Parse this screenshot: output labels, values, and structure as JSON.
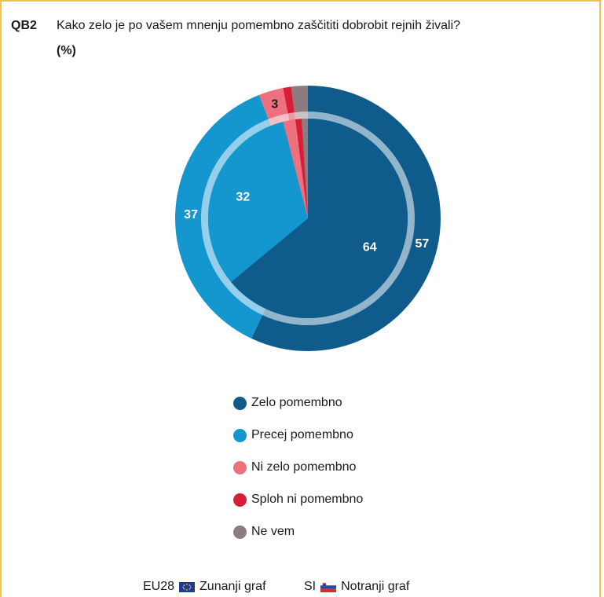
{
  "header": {
    "code": "QB2",
    "question": "Kako zelo je po vašem mnenju pomembno zaščititi dobrobit rejnih živali?",
    "unit": "(%)"
  },
  "chart_data": [
    {
      "type": "pie",
      "ring": "outer",
      "title": "",
      "series": "EU28",
      "slices": [
        {
          "label": "Zelo pomembno",
          "value": 57,
          "label_text": "57",
          "color": "#0e5b8c"
        },
        {
          "label": "Precej pomembno",
          "value": 37,
          "label_text": "37",
          "color": "#1496cf"
        },
        {
          "label": "Ni zelo pomembno",
          "value": 3,
          "label_text": "3",
          "color": "#ee6f7e"
        },
        {
          "label": "Sploh ni pomembno",
          "value": 1,
          "label_text": "",
          "color": "#d81e37"
        },
        {
          "label": "Ne vem",
          "value": 2,
          "label_text": "",
          "color": "#8c7b80"
        }
      ]
    },
    {
      "type": "pie",
      "ring": "inner",
      "title": "",
      "series": "SI",
      "slices": [
        {
          "label": "Zelo pomembno",
          "value": 64,
          "label_text": "64",
          "color": "#0e5b8c"
        },
        {
          "label": "Precej pomembno",
          "value": 32,
          "label_text": "32",
          "color": "#1496cf"
        },
        {
          "label": "Ni zelo pomembno",
          "value": 2,
          "label_text": "",
          "color": "#ee6f7e"
        },
        {
          "label": "Sploh ni pomembno",
          "value": 1,
          "label_text": "",
          "color": "#d81e37"
        },
        {
          "label": "Ne vem",
          "value": 1,
          "label_text": "",
          "color": "#8c7b80"
        }
      ]
    }
  ],
  "legend": [
    {
      "label": "Zelo pomembno",
      "color": "#0e5b8c"
    },
    {
      "label": "Precej pomembno",
      "color": "#1496cf"
    },
    {
      "label": "Ni zelo pomembno",
      "color": "#ee6f7e"
    },
    {
      "label": "Sploh ni pomembno",
      "color": "#d81e37"
    },
    {
      "label": "Ne vem",
      "color": "#8c7b80"
    }
  ],
  "footer": {
    "outer_code": "EU28",
    "outer_flag": "eu-flag-icon",
    "outer_label": "Zunanji graf",
    "inner_code": "SI",
    "inner_flag": "slovenia-flag-icon",
    "inner_label": "Notranji graf"
  }
}
